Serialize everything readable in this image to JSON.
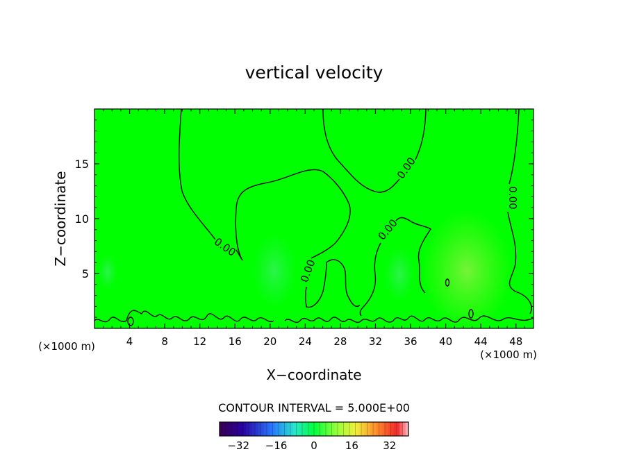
{
  "chart_data": {
    "type": "heatmap",
    "title": "vertical velocity",
    "xlabel": "X−coordinate",
    "ylabel": "Z−coordinate",
    "x_unit_left": "(×1000 m)",
    "x_unit_right": "(×1000 m)",
    "x_ticks": [
      "4",
      "8",
      "12",
      "16",
      "20",
      "24",
      "28",
      "32",
      "36",
      "40",
      "44",
      "48"
    ],
    "y_ticks": [
      "5",
      "10",
      "15"
    ],
    "xlim": [
      0,
      50
    ],
    "ylim": [
      0,
      20
    ],
    "background_field_color": "#00ff00",
    "contour_labels": [
      "0.00",
      "0.00",
      "0.00",
      "0.00",
      "0.00"
    ],
    "contour_interval_text": "CONTOUR INTERVAL = 5.000E+00",
    "colorbar": {
      "ticks": [
        "−32",
        "−16",
        "0",
        "16",
        "32"
      ],
      "range": [
        -40,
        40
      ]
    }
  }
}
